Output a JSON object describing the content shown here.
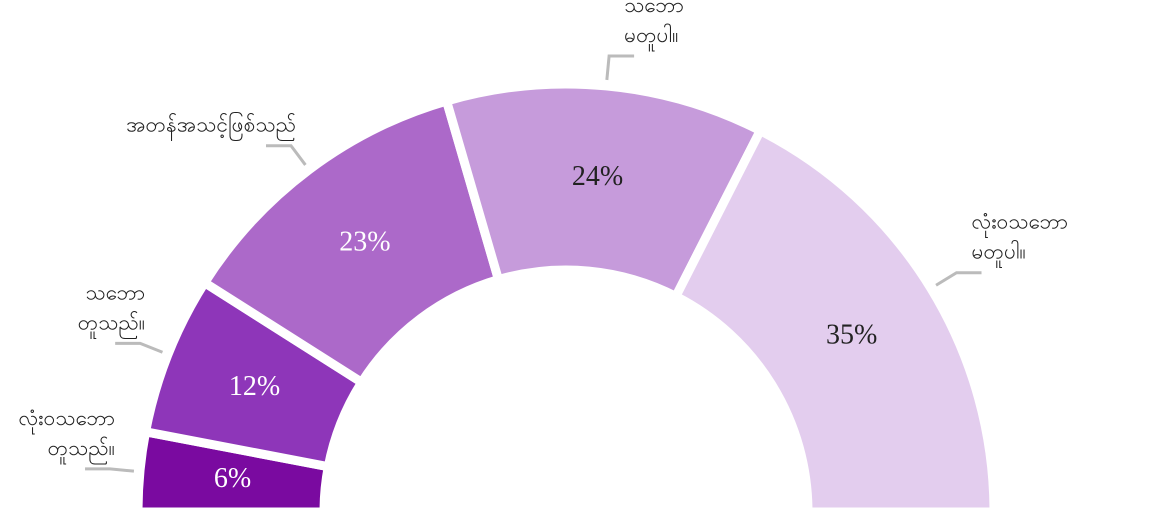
{
  "chart_data": {
    "type": "half-donut",
    "categories": [
      [
        "လုံးဝသဘော",
        "တူသည်။"
      ],
      [
        "သဘော",
        "တူသည်။"
      ],
      [
        "အတန်အသင့်ဖြစ်သည်"
      ],
      [
        "သဘော",
        "မတူပါ။"
      ],
      [
        "လုံးဝသဘော",
        "မတူပါ။"
      ]
    ],
    "values": [
      6,
      12,
      23,
      24,
      35
    ],
    "value_labels": [
      "6%",
      "12%",
      "23%",
      "24%",
      "35%"
    ],
    "colors": [
      "#7a0aa0",
      "#8e36b9",
      "#ac69c9",
      "#c69bdb",
      "#e3cdee"
    ]
  }
}
